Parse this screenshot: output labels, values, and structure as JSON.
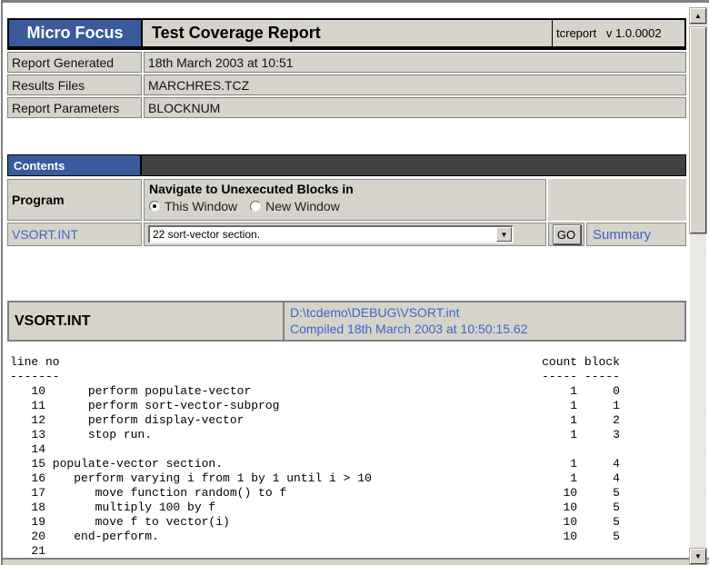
{
  "colors": {
    "brand_blue": "#3a5a9c",
    "contents_dark_bar": "#424242",
    "cell_gray": "#d6d3ca",
    "link_blue": "#3a66c9",
    "border_gray": "#808080"
  },
  "header": {
    "brand": "Micro Focus",
    "title": "Test Coverage Report",
    "version": "tcreport   v 1.0.0002"
  },
  "info": {
    "rows": [
      {
        "label": "Report Generated",
        "value": "18th March 2003 at 10:51"
      },
      {
        "label": "Results Files",
        "value": "MARCHRES.TCZ"
      },
      {
        "label": "Report Parameters",
        "value": "BLOCKNUM"
      }
    ]
  },
  "contents": {
    "bar_label": "Contents",
    "program_label": "Program",
    "navigate_title": "Navigate to Unexecuted Blocks in",
    "radio_this_label": "This Window",
    "radio_new_label": "New Window",
    "radio_selected": "This Window",
    "program_link": "VSORT.INT",
    "dropdown_value": "22 sort-vector section.",
    "go_label": "GO",
    "summary_label": "Summary"
  },
  "program_header": {
    "name": "VSORT.INT",
    "path": "D:\\tcdemo\\DEBUG\\VSORT.int",
    "compiled": "Compiled 18th March 2003 at 10:50:15.62"
  },
  "listing": {
    "col_line_header": "line no",
    "col_line_underline": "-------",
    "col_count_header": "count",
    "col_block_header": "block",
    "col_underline": "-----",
    "rows": [
      {
        "line": 10,
        "indent": 5,
        "code": "perform populate-vector",
        "count": "1",
        "block": "0"
      },
      {
        "line": 11,
        "indent": 5,
        "code": "perform sort-vector-subprog",
        "count": "1",
        "block": "1"
      },
      {
        "line": 12,
        "indent": 5,
        "code": "perform display-vector",
        "count": "1",
        "block": "2"
      },
      {
        "line": 13,
        "indent": 5,
        "code": "stop run.",
        "count": "1",
        "block": "3"
      },
      {
        "line": 14,
        "indent": 0,
        "code": "",
        "count": "",
        "block": ""
      },
      {
        "line": 15,
        "indent": 0,
        "code": "populate-vector section.",
        "count": "1",
        "block": "4"
      },
      {
        "line": 16,
        "indent": 3,
        "code": "perform varying i from 1 by 1 until i > 10",
        "count": "1",
        "block": "4"
      },
      {
        "line": 17,
        "indent": 6,
        "code": "move function random() to f",
        "count": "10",
        "block": "5"
      },
      {
        "line": 18,
        "indent": 6,
        "code": "multiply 100 by f",
        "count": "10",
        "block": "5"
      },
      {
        "line": 19,
        "indent": 6,
        "code": "move f to vector(i)",
        "count": "10",
        "block": "5"
      },
      {
        "line": 20,
        "indent": 3,
        "code": "end-perform.",
        "count": "10",
        "block": "5"
      },
      {
        "line": 21,
        "indent": 0,
        "code": "",
        "count": "",
        "block": ""
      }
    ]
  },
  "icons": {
    "dropdown_arrow": "▼",
    "scroll_up_arrow": "▲",
    "scroll_down_arrow": "▼"
  }
}
